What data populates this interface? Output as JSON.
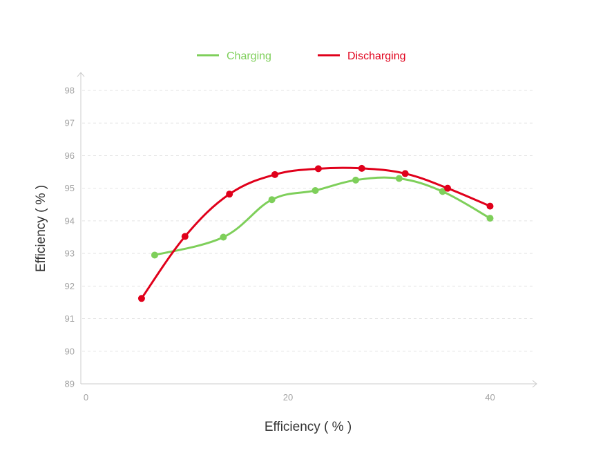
{
  "chart_data": {
    "type": "line",
    "title": "",
    "xlabel": "Efficiency ( % )",
    "ylabel": "Efficiency ( % )",
    "xlim": [
      0,
      44
    ],
    "ylim": [
      89,
      98
    ],
    "x_ticks": [
      "0",
      "20",
      "40"
    ],
    "y_ticks": [
      "89",
      "90",
      "91",
      "92",
      "93",
      "94",
      "95",
      "96",
      "97",
      "98"
    ],
    "grid": true,
    "legend_position": "top",
    "series": [
      {
        "name": "Charging",
        "color": "#7ecf5a",
        "points": [
          {
            "x": 6.8,
            "y": 92.95
          },
          {
            "x": 13.6,
            "y": 93.5
          },
          {
            "x": 18.4,
            "y": 94.65
          },
          {
            "x": 22.7,
            "y": 94.93
          },
          {
            "x": 26.7,
            "y": 95.25
          },
          {
            "x": 31.0,
            "y": 95.3
          },
          {
            "x": 35.3,
            "y": 94.9
          },
          {
            "x": 40.0,
            "y": 94.08
          }
        ]
      },
      {
        "name": "Discharging",
        "color": "#e0001b",
        "points": [
          {
            "x": 5.5,
            "y": 91.62
          },
          {
            "x": 9.8,
            "y": 93.52
          },
          {
            "x": 14.2,
            "y": 94.82
          },
          {
            "x": 18.7,
            "y": 95.42
          },
          {
            "x": 23.0,
            "y": 95.6
          },
          {
            "x": 27.3,
            "y": 95.61
          },
          {
            "x": 31.6,
            "y": 95.45
          },
          {
            "x": 35.8,
            "y": 95.0
          },
          {
            "x": 40.0,
            "y": 94.45
          }
        ]
      }
    ]
  }
}
